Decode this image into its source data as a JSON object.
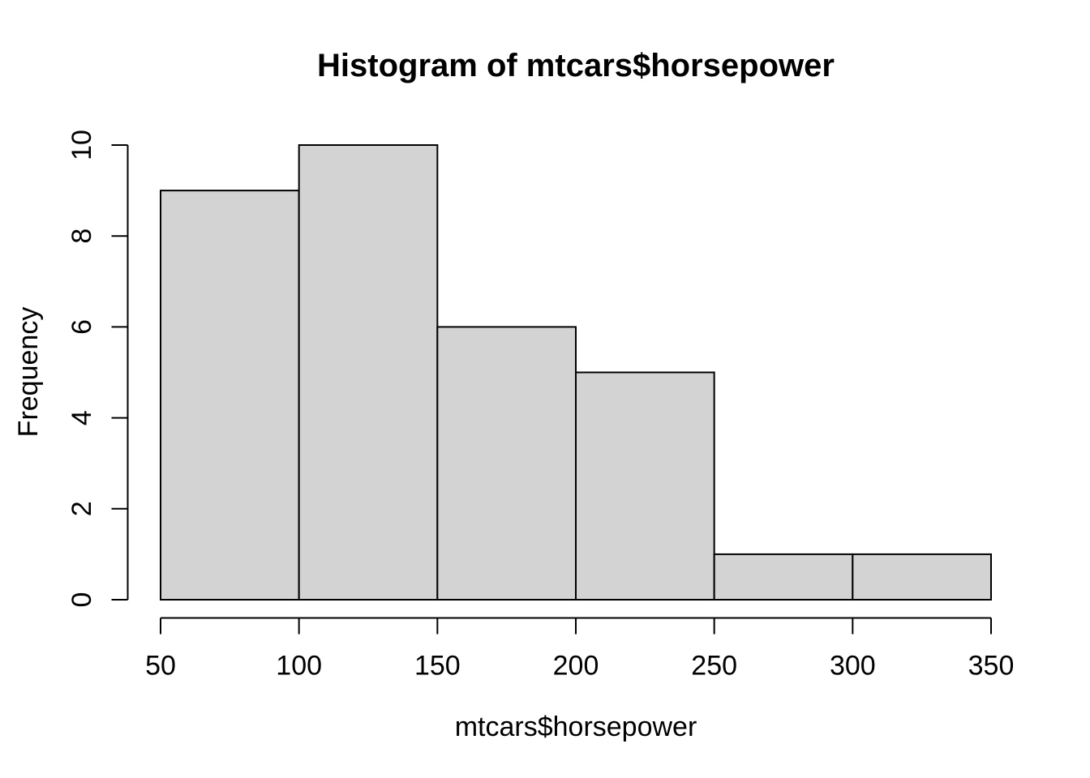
{
  "chart_data": {
    "type": "bar",
    "subtype": "histogram",
    "title": "Histogram of mtcars$horsepower",
    "xlabel": "mtcars$horsepower",
    "ylabel": "Frequency",
    "bin_breaks": [
      50,
      100,
      150,
      200,
      250,
      300,
      350
    ],
    "counts": [
      9,
      10,
      6,
      5,
      1,
      1
    ],
    "x_ticks": [
      50,
      100,
      150,
      200,
      250,
      300,
      350
    ],
    "y_ticks": [
      0,
      2,
      4,
      6,
      8,
      10
    ],
    "xlim": [
      50,
      350
    ],
    "ylim": [
      0,
      10
    ],
    "grid": false,
    "legend": "none",
    "colors": {
      "background": "#ffffff",
      "bar_fill": "#d3d3d3",
      "bar_stroke": "#000000",
      "axis": "#000000",
      "text": "#000000"
    }
  }
}
